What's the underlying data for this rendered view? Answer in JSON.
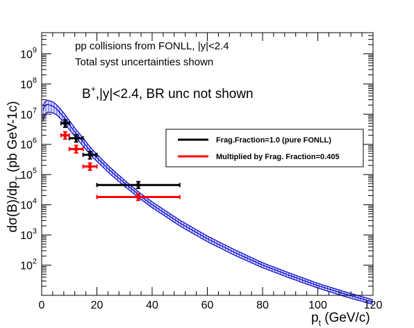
{
  "chart_data": {
    "type": "scatter",
    "annotations": [
      "pp collisions from FONLL, |y|<2.4",
      "Total syst uncertainties shown"
    ],
    "title_main": "B",
    "title_sup": "+",
    "title_rest": ",|y|<2.4, BR unc not shown",
    "xlabel_main": "p",
    "xlabel_sub": "t",
    "xlabel_rest": " (GeV/c)",
    "ylabel_main": "dσ(B)/dp",
    "ylabel_sub": "T",
    "ylabel_rest": " (pb GeV-1c)",
    "xlim": [
      0,
      120
    ],
    "ylim": [
      10,
      5000000000.0
    ],
    "log_y": true,
    "grid": false,
    "legend_position": "right",
    "x_ticks": [
      0,
      20,
      40,
      60,
      80,
      100,
      120
    ],
    "y_ticks": [
      {
        "mantissa": "10",
        "exp": "2",
        "value": 100
      },
      {
        "mantissa": "10",
        "exp": "3",
        "value": 1000
      },
      {
        "mantissa": "10",
        "exp": "4",
        "value": 10000
      },
      {
        "mantissa": "10",
        "exp": "5",
        "value": 100000
      },
      {
        "mantissa": "10",
        "exp": "6",
        "value": 1000000
      },
      {
        "mantissa": "10",
        "exp": "7",
        "value": 10000000
      },
      {
        "mantissa": "10",
        "exp": "8",
        "value": 100000000
      },
      {
        "mantissa": "10",
        "exp": "9",
        "value": 1000000000
      }
    ],
    "band": {
      "color": "#0000cc",
      "x": [
        0.5,
        1,
        2,
        3,
        4,
        5,
        6,
        8,
        10,
        12,
        15,
        18,
        20,
        25,
        30,
        35,
        40,
        50,
        60,
        70,
        80,
        90,
        100,
        110,
        120
      ],
      "central": [
        13000000.0,
        18000000.0,
        21000000.0,
        20000000.0,
        18500000.0,
        16000000.0,
        13000000.0,
        8000000.0,
        4500000.0,
        2600000.0,
        1200000.0,
        550000.0,
        360000.0,
        130000.0,
        52000.0,
        22000.0,
        10000.0,
        2500.0,
        750.0,
        260.0,
        100.0,
        45,
        21,
        11,
        6
      ],
      "upper": [
        18000000.0,
        25000000.0,
        29000000.0,
        27500000.0,
        25500000.0,
        22000000.0,
        18000000.0,
        11000000.0,
        6200000.0,
        3500000.0,
        1600000.0,
        730000.0,
        470000.0,
        165000.0,
        65000.0,
        27000.0,
        12500.0,
        3100.0,
        920.0,
        320.0,
        120.0,
        54,
        25,
        13,
        7.1
      ],
      "lower": [
        6000000.0,
        9000000.0,
        11500000.0,
        11500000.0,
        11000000.0,
        10000000.0,
        8500000.0,
        5400000.0,
        3100000.0,
        1850000.0,
        880000.0,
        410000.0,
        275000.0,
        100000.0,
        41000.0,
        17500.0,
        8000.0,
        2000.0,
        600.0,
        210.0,
        82,
        37,
        17.5,
        9,
        5
      ]
    },
    "series": [
      {
        "name": "Frag.Fraction=1.0 (pure FONLL)",
        "color": "#000000",
        "points": [
          {
            "x": 8.5,
            "y": 5000000.0,
            "xlo": 7,
            "xhi": 10,
            "ylo": 3700000.0,
            "yhi": 6500000.0
          },
          {
            "x": 12.5,
            "y": 1600000.0,
            "xlo": 10,
            "xhi": 15,
            "ylo": 1200000.0,
            "yhi": 2100000.0
          },
          {
            "x": 17.5,
            "y": 450000.0,
            "xlo": 15,
            "xhi": 20,
            "ylo": 330000.0,
            "yhi": 580000.0
          },
          {
            "x": 35,
            "y": 45000.0,
            "xlo": 20,
            "xhi": 50,
            "ylo": 35000.0,
            "yhi": 58000.0
          }
        ]
      },
      {
        "name": "Multiplied by Frag. Fraction=0.405",
        "color": "#ff0000",
        "points": [
          {
            "x": 8.5,
            "y": 2000000.0,
            "xlo": 7,
            "xhi": 10,
            "ylo": 1500000.0,
            "yhi": 2600000.0
          },
          {
            "x": 12.5,
            "y": 700000.0,
            "xlo": 10,
            "xhi": 15,
            "ylo": 520000.0,
            "yhi": 920000.0
          },
          {
            "x": 17.5,
            "y": 185000.0,
            "xlo": 15,
            "xhi": 20,
            "ylo": 140000.0,
            "yhi": 240000.0
          },
          {
            "x": 35,
            "y": 18000.0,
            "xlo": 20,
            "xhi": 50,
            "ylo": 14000.0,
            "yhi": 23000.0
          }
        ]
      }
    ]
  }
}
